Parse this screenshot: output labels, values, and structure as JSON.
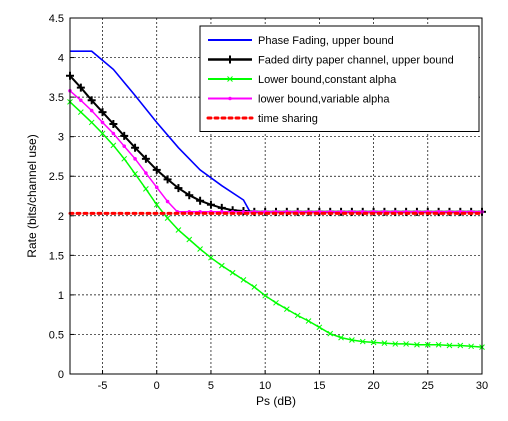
{
  "chart_data": {
    "type": "line",
    "xlabel": "Ps  (dB)",
    "ylabel": "Rate (bits/channel use)",
    "xlim": [
      -8,
      30
    ],
    "ylim": [
      0,
      4.5
    ],
    "xticks": [
      -5,
      0,
      5,
      10,
      15,
      20,
      25,
      30
    ],
    "yticks": [
      0,
      0.5,
      1,
      1.5,
      2,
      2.5,
      3,
      3.5,
      4,
      4.5
    ],
    "grid": true,
    "legend_position": "top-right",
    "series": [
      {
        "name": "Phase Fading, upper bound",
        "color": "#0000ff",
        "marker": "none",
        "x": [
          -8,
          -6,
          -4,
          -2,
          0,
          2,
          4,
          6,
          8,
          8.6,
          9.5,
          12,
          15,
          20,
          25,
          30
        ],
        "y": [
          4.08,
          4.08,
          3.85,
          3.52,
          3.18,
          2.86,
          2.58,
          2.38,
          2.2,
          2.05,
          2.05,
          2.05,
          2.05,
          2.05,
          2.05,
          2.05
        ]
      },
      {
        "name": "Faded dirty paper channel, upper bound",
        "color": "#000000",
        "marker": "plus",
        "x": [
          -8,
          -7,
          -6,
          -5,
          -4,
          -3,
          -2,
          -1,
          0,
          1,
          2,
          3,
          4,
          5,
          6,
          7,
          8,
          9,
          10,
          11,
          12,
          13,
          14,
          15,
          16,
          17,
          18,
          19,
          20,
          21,
          22,
          23,
          24,
          25,
          26,
          27,
          28,
          29,
          30
        ],
        "y": [
          3.77,
          3.62,
          3.46,
          3.31,
          3.16,
          3.01,
          2.86,
          2.72,
          2.58,
          2.46,
          2.35,
          2.26,
          2.19,
          2.14,
          2.1,
          2.07,
          2.06,
          2.05,
          2.05,
          2.05,
          2.05,
          2.05,
          2.05,
          2.05,
          2.05,
          2.05,
          2.05,
          2.05,
          2.05,
          2.05,
          2.05,
          2.05,
          2.05,
          2.05,
          2.05,
          2.05,
          2.05,
          2.05,
          2.05
        ]
      },
      {
        "name": "Lower bound,constant alpha",
        "color": "#00ff00",
        "marker": "x",
        "x": [
          -8,
          -7,
          -6,
          -5,
          -4,
          -3,
          -2,
          -1,
          0,
          1,
          2,
          3,
          4,
          5,
          6,
          7,
          8,
          9,
          10,
          11,
          12,
          13,
          14,
          15,
          16,
          17,
          18,
          19,
          20,
          21,
          22,
          23,
          24,
          25,
          26,
          27,
          28,
          29,
          30
        ],
        "y": [
          3.44,
          3.31,
          3.18,
          3.04,
          2.89,
          2.72,
          2.53,
          2.34,
          2.14,
          1.97,
          1.82,
          1.7,
          1.58,
          1.47,
          1.37,
          1.28,
          1.19,
          1.1,
          0.99,
          0.9,
          0.82,
          0.74,
          0.67,
          0.59,
          0.51,
          0.46,
          0.43,
          0.41,
          0.4,
          0.39,
          0.38,
          0.38,
          0.37,
          0.37,
          0.37,
          0.36,
          0.36,
          0.35,
          0.34
        ]
      },
      {
        "name": "lower bound,variable alpha",
        "color": "#ff00ff",
        "marker": "dot",
        "x": [
          -8,
          -7,
          -6,
          -5,
          -4,
          -3,
          -2,
          -1,
          0,
          1,
          1.9,
          3,
          4,
          5,
          6,
          7,
          8,
          9,
          10,
          11,
          12,
          13,
          14,
          15,
          16,
          17,
          18,
          19,
          20,
          21,
          22,
          23,
          24,
          25,
          26,
          27,
          28,
          29,
          30
        ],
        "y": [
          3.58,
          3.46,
          3.33,
          3.18,
          3.04,
          2.88,
          2.72,
          2.54,
          2.36,
          2.18,
          2.05,
          2.05,
          2.05,
          2.05,
          2.05,
          2.05,
          2.05,
          2.05,
          2.05,
          2.05,
          2.05,
          2.05,
          2.05,
          2.05,
          2.05,
          2.05,
          2.05,
          2.05,
          2.05,
          2.05,
          2.05,
          2.05,
          2.05,
          2.05,
          2.05,
          2.05,
          2.05,
          2.05,
          2.05
        ]
      },
      {
        "name": "time sharing",
        "color": "#ff0000",
        "marker": "dot-dashed",
        "x": [
          -8,
          30
        ],
        "y": [
          2.03,
          2.03
        ]
      }
    ]
  }
}
